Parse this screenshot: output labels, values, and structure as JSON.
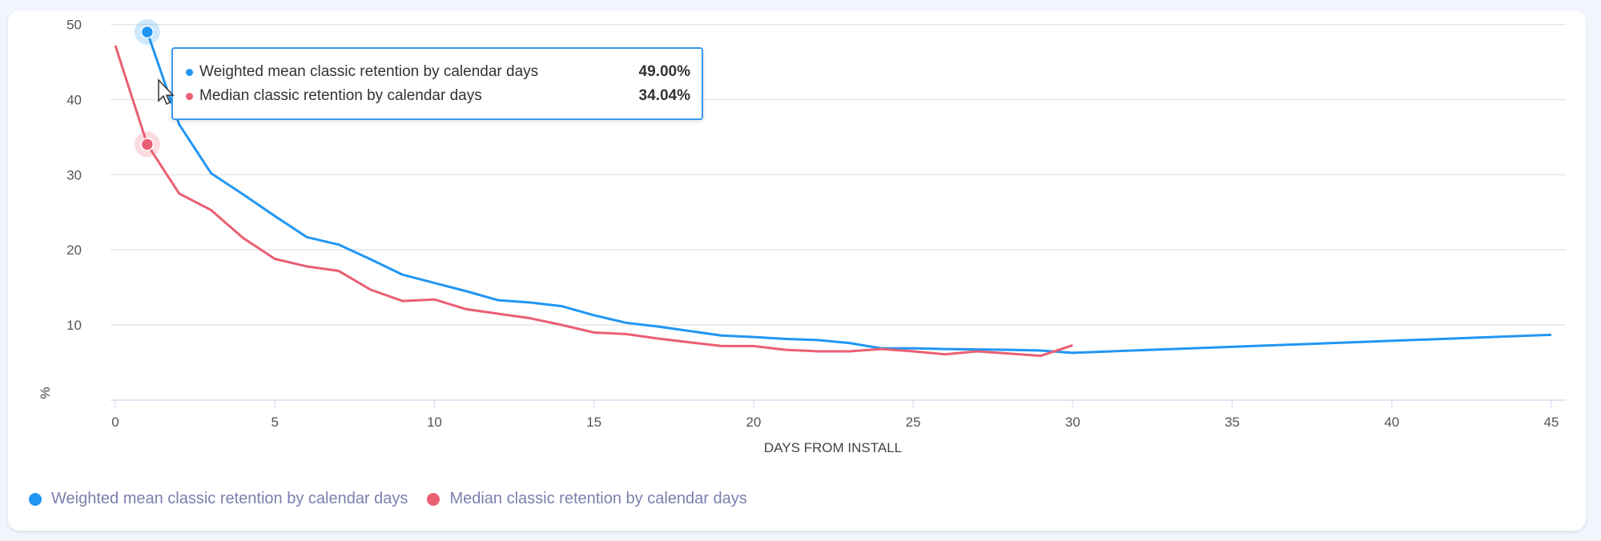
{
  "chart_data": {
    "type": "line",
    "xlabel": "DAYS FROM INSTALL",
    "ylabel": "%",
    "xlim": [
      0,
      45
    ],
    "ylim": [
      0,
      50
    ],
    "xticks": [
      0,
      5,
      10,
      15,
      20,
      25,
      30,
      35,
      40,
      45
    ],
    "yticks": [
      10,
      20,
      30,
      40,
      50
    ],
    "grid": true,
    "legend_position": "bottom-left",
    "series": [
      {
        "name": "Weighted mean classic retention by calendar days",
        "color": "#2196f3",
        "x": [
          1,
          2,
          3,
          4,
          5,
          6,
          7,
          8,
          9,
          10,
          11,
          12,
          13,
          14,
          15,
          16,
          17,
          18,
          19,
          20,
          21,
          22,
          23,
          24,
          25,
          26,
          27,
          28,
          29,
          30,
          45
        ],
        "values": [
          49.0,
          36.7,
          30.2,
          27.4,
          24.5,
          21.7,
          20.7,
          18.75,
          16.7,
          15.6,
          14.5,
          13.3,
          13.0,
          12.5,
          11.3,
          10.3,
          9.8,
          9.2,
          8.6,
          8.4,
          8.15,
          8.0,
          7.6,
          6.9,
          6.9,
          6.8,
          6.75,
          6.7,
          6.6,
          6.3,
          8.7
        ]
      },
      {
        "name": "Median classic retention by calendar days",
        "color": "#ea5f73",
        "x": [
          0,
          1,
          2,
          3,
          4,
          5,
          6,
          7,
          8,
          9,
          10,
          11,
          12,
          13,
          14,
          15,
          16,
          17,
          18,
          19,
          20,
          21,
          22,
          23,
          24,
          25,
          26,
          27,
          28,
          29,
          30
        ],
        "values": [
          47.2,
          34.04,
          27.5,
          25.3,
          21.6,
          18.8,
          17.8,
          17.2,
          14.7,
          13.2,
          13.4,
          12.1,
          11.5,
          10.9,
          10.0,
          9.0,
          8.8,
          8.2,
          7.7,
          7.2,
          7.2,
          6.7,
          6.5,
          6.5,
          6.8,
          6.5,
          6.1,
          6.5,
          6.2,
          5.9,
          7.3
        ]
      }
    ],
    "highlight_x": 1
  },
  "tooltip": {
    "rows": [
      {
        "label": "Weighted mean classic retention by calendar days",
        "value": "49.00%",
        "color": "#2196f3"
      },
      {
        "label": "Median classic retention by calendar days",
        "value": "34.04%",
        "color": "#ea5f73"
      }
    ]
  },
  "legend": [
    {
      "label": "Weighted mean classic retention by calendar days",
      "color": "#2196f3"
    },
    {
      "label": "Median classic retention by calendar days",
      "color": "#ea5f73"
    }
  ]
}
